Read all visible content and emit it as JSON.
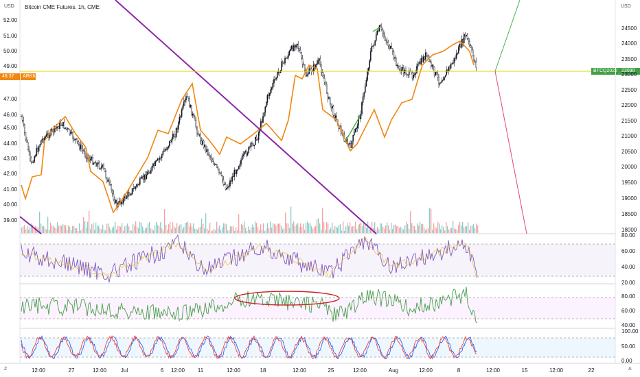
{
  "chart_title": "Bitcoin CME Futures, 1h, CME",
  "left_currency": "USD",
  "right_currency": "USD",
  "left_axis_ticks": [
    "52.00",
    "51.00",
    "50.00",
    "49.00",
    "47.00",
    "46.00",
    "45.00",
    "44.00",
    "43.00",
    "42.00",
    "41.00",
    "40.00",
    "39.00"
  ],
  "right_axis_ticks": [
    "24500",
    "24000",
    "23500",
    "23000",
    "22500",
    "22000",
    "21500",
    "21000",
    "20500",
    "20000",
    "19500",
    "19000",
    "18500",
    "18000"
  ],
  "time_axis_labels": [
    "12:00",
    "27",
    "12:00",
    "Jul",
    "6",
    "12:00",
    "11",
    "12:00",
    "18",
    "12:00",
    "25",
    "12:00",
    "Aug",
    "12:00",
    "8",
    "12:00",
    "15",
    "12:00",
    "22"
  ],
  "arkk_price_label": "48.37",
  "arkk_symbol_label": "ARKK",
  "btc_symbol_label": "BTCQ2022",
  "btc_price_label": "23090",
  "rsi_ticks": [
    "80.00",
    "60.00",
    "40.00",
    "20.00"
  ],
  "osc2_ticks": [
    "80.00",
    "60.00",
    "40.00",
    "20.00"
  ],
  "stoch_ticks": [
    "100.00",
    "50.00",
    "0.00"
  ],
  "corner_left": "Z",
  "corner_right": "A",
  "colors": {
    "candle": "#131722",
    "arkk_line": "#f0870f",
    "trend_purple": "#8e24aa",
    "horizontal": "#e6d300",
    "projection_up": "#4caf50",
    "projection_down": "#e5466a",
    "rsi_line": "#7e57c2",
    "osc_line": "#43a047",
    "stoch_k": "#2962ff",
    "stoch_d": "#f44336",
    "ellipse": "#c62828"
  }
}
